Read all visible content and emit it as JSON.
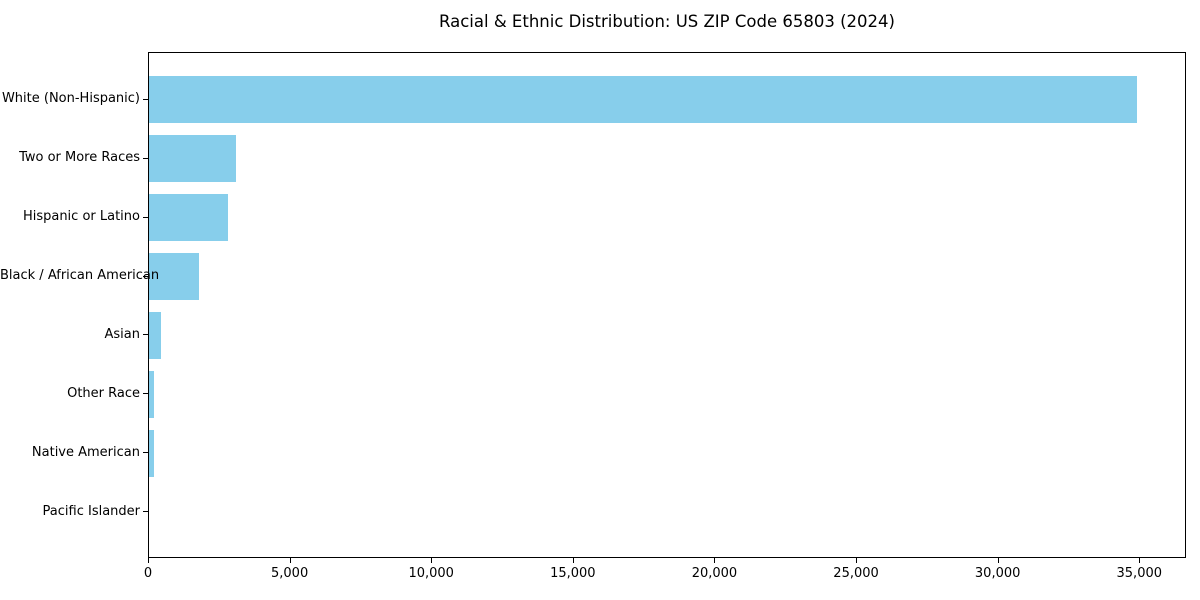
{
  "chart_data": {
    "type": "bar",
    "orientation": "horizontal",
    "title": "Racial & Ethnic Distribution: US ZIP Code 65803 (2024)",
    "categories": [
      "White (Non-Hispanic)",
      "Two or More Races",
      "Hispanic or Latino",
      "Black / African American",
      "Asian",
      "Other Race",
      "Native American",
      "Pacific Islander"
    ],
    "values": [
      34900,
      3060,
      2790,
      1770,
      420,
      170,
      160,
      0
    ],
    "xlabel": "",
    "ylabel": "",
    "xlim": [
      0,
      36650
    ],
    "xticks": [
      0,
      5000,
      10000,
      15000,
      20000,
      25000,
      30000,
      35000
    ],
    "xtick_labels": [
      "0",
      "5,000",
      "10,000",
      "15,000",
      "20,000",
      "25,000",
      "30,000",
      "35,000"
    ],
    "bar_color": "#87CEEB",
    "axis_color": "#000000",
    "background_color": "#ffffff",
    "grid": false,
    "legend": false
  }
}
